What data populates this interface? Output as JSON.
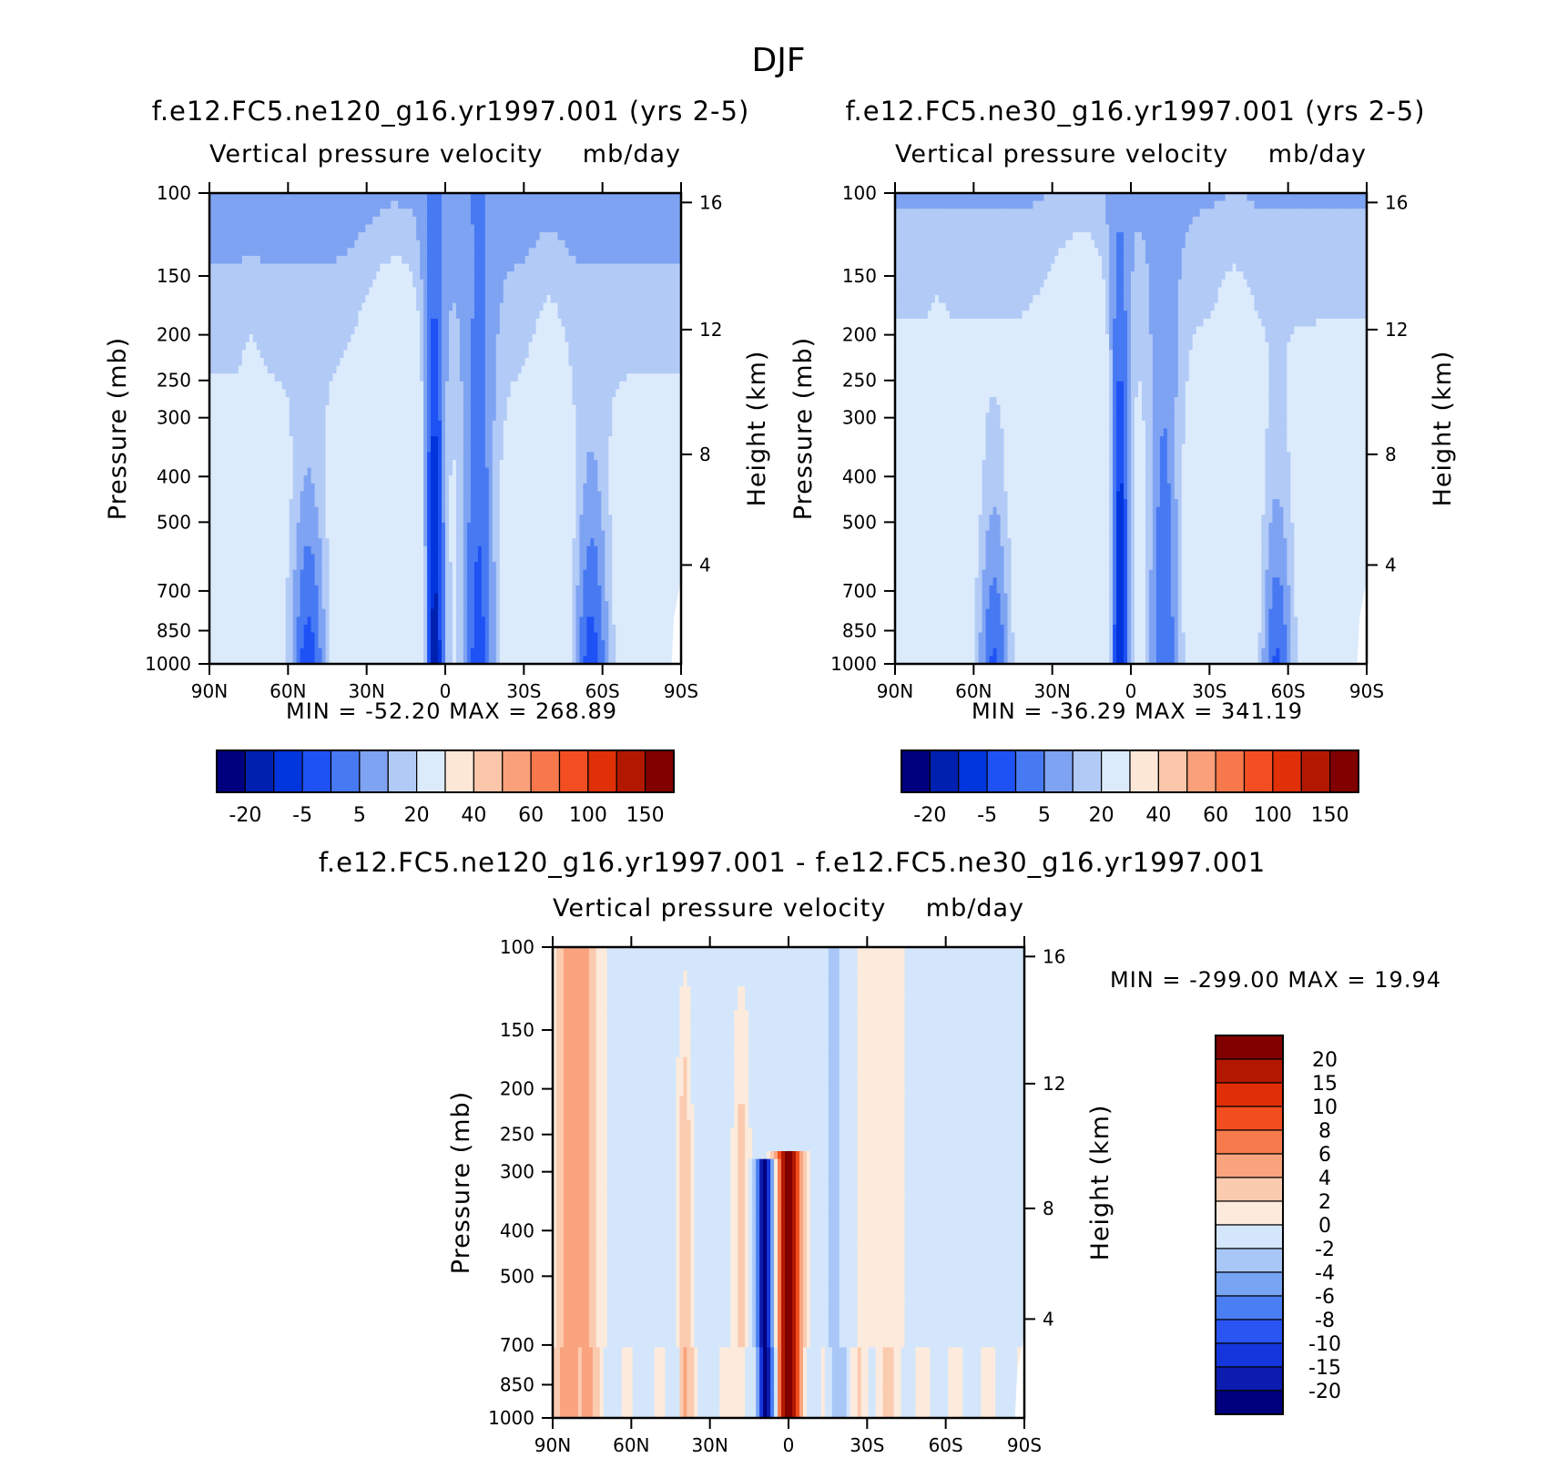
{
  "figure": {
    "title": "DJF"
  },
  "colors": {
    "abs_scale": [
      "#00007f",
      "#0020b0",
      "#0034dc",
      "#1e52f5",
      "#4779f3",
      "#7ea3f2",
      "#b2caf6",
      "#dcebfc",
      "#fde8d8",
      "#fcc6aa",
      "#faa07a",
      "#f7784a",
      "#f24e22",
      "#e03008",
      "#b21800",
      "#800000"
    ],
    "diff_scale": [
      "#00007f",
      "#0c1cae",
      "#1636dd",
      "#2a55f3",
      "#4a7ef3",
      "#78a4f4",
      "#a8c7f7",
      "#d4e6fb",
      "#fcebdd",
      "#fbcbb0",
      "#f9a47f",
      "#f67a4c",
      "#f24d1f",
      "#df2f06",
      "#b21800",
      "#800000"
    ]
  },
  "panels": [
    {
      "title": "f.e12.FC5.ne120_g16.yr1997.001 (yrs 2-5)",
      "subtitle_left": "Vertical pressure velocity",
      "subtitle_right": "mb/day",
      "ylabel": "Pressure (mb)",
      "ylabel_right": "Height (km)",
      "stats": "MIN = -52.20   MAX = 268.89"
    },
    {
      "title": "f.e12.FC5.ne30_g16.yr1997.001 (yrs 2-5)",
      "subtitle_left": "Vertical pressure velocity",
      "subtitle_right": "mb/day",
      "ylabel": "Pressure (mb)",
      "ylabel_right": "Height (km)",
      "stats": "MIN = -36.29   MAX = 341.19"
    },
    {
      "title": "f.e12.FC5.ne120_g16.yr1997.001 - f.e12.FC5.ne30_g16.yr1997.001",
      "subtitle_left": "Vertical pressure velocity",
      "subtitle_right": "mb/day",
      "ylabel": "Pressure (mb)",
      "ylabel_right": "Height (km)",
      "stats": "MIN = -299.00   MAX =   19.94"
    }
  ],
  "chart_data": [
    {
      "type": "heatmap",
      "title": "f.e12.FC5.ne120_g16.yr1997.001 (yrs 2-5)",
      "subtitle": "Vertical pressure velocity   mb/day",
      "xlabel": "",
      "ylabel": "Pressure (mb)",
      "ylabel_right": "Height (km)",
      "x_ticks": [
        "90N",
        "60N",
        "30N",
        "0",
        "30S",
        "60S",
        "90S"
      ],
      "y_ticks": [
        "100",
        "150",
        "200",
        "250",
        "300",
        "400",
        "500",
        "700",
        "850",
        "1000"
      ],
      "y_ticks_right": [
        "16",
        "12",
        "8",
        "4"
      ],
      "y_scale": "log",
      "ylim": [
        1000,
        100
      ],
      "colorbar_labels": [
        "-20",
        "-5",
        "5",
        "20",
        "40",
        "60",
        "100",
        "150"
      ],
      "min": -52.2,
      "max": 268.89,
      "grid": false
    },
    {
      "type": "heatmap",
      "title": "f.e12.FC5.ne30_g16.yr1997.001 (yrs 2-5)",
      "subtitle": "Vertical pressure velocity   mb/day",
      "xlabel": "",
      "ylabel": "Pressure (mb)",
      "ylabel_right": "Height (km)",
      "x_ticks": [
        "90N",
        "60N",
        "30N",
        "0",
        "30S",
        "60S",
        "90S"
      ],
      "y_ticks": [
        "100",
        "150",
        "200",
        "250",
        "300",
        "400",
        "500",
        "700",
        "850",
        "1000"
      ],
      "y_ticks_right": [
        "16",
        "12",
        "8",
        "4"
      ],
      "y_scale": "log",
      "ylim": [
        1000,
        100
      ],
      "colorbar_labels": [
        "-20",
        "-5",
        "5",
        "20",
        "40",
        "60",
        "100",
        "150"
      ],
      "min": -36.29,
      "max": 341.19,
      "grid": false
    },
    {
      "type": "heatmap",
      "title": "f.e12.FC5.ne120_g16.yr1997.001 - f.e12.FC5.ne30_g16.yr1997.001",
      "subtitle": "Vertical pressure velocity   mb/day",
      "xlabel": "",
      "ylabel": "Pressure (mb)",
      "ylabel_right": "Height (km)",
      "x_ticks": [
        "90N",
        "60N",
        "30N",
        "0",
        "30S",
        "60S",
        "90S"
      ],
      "y_ticks": [
        "100",
        "150",
        "200",
        "250",
        "300",
        "400",
        "500",
        "700",
        "850",
        "1000"
      ],
      "y_ticks_right": [
        "16",
        "12",
        "8",
        "4"
      ],
      "y_scale": "log",
      "ylim": [
        1000,
        100
      ],
      "colorbar_labels": [
        "20",
        "15",
        "10",
        "8",
        "6",
        "4",
        "2",
        "0",
        "-2",
        "-4",
        "-6",
        "-8",
        "-10",
        "-15",
        "-20"
      ],
      "min": -299.0,
      "max": 19.94,
      "grid": false
    }
  ]
}
